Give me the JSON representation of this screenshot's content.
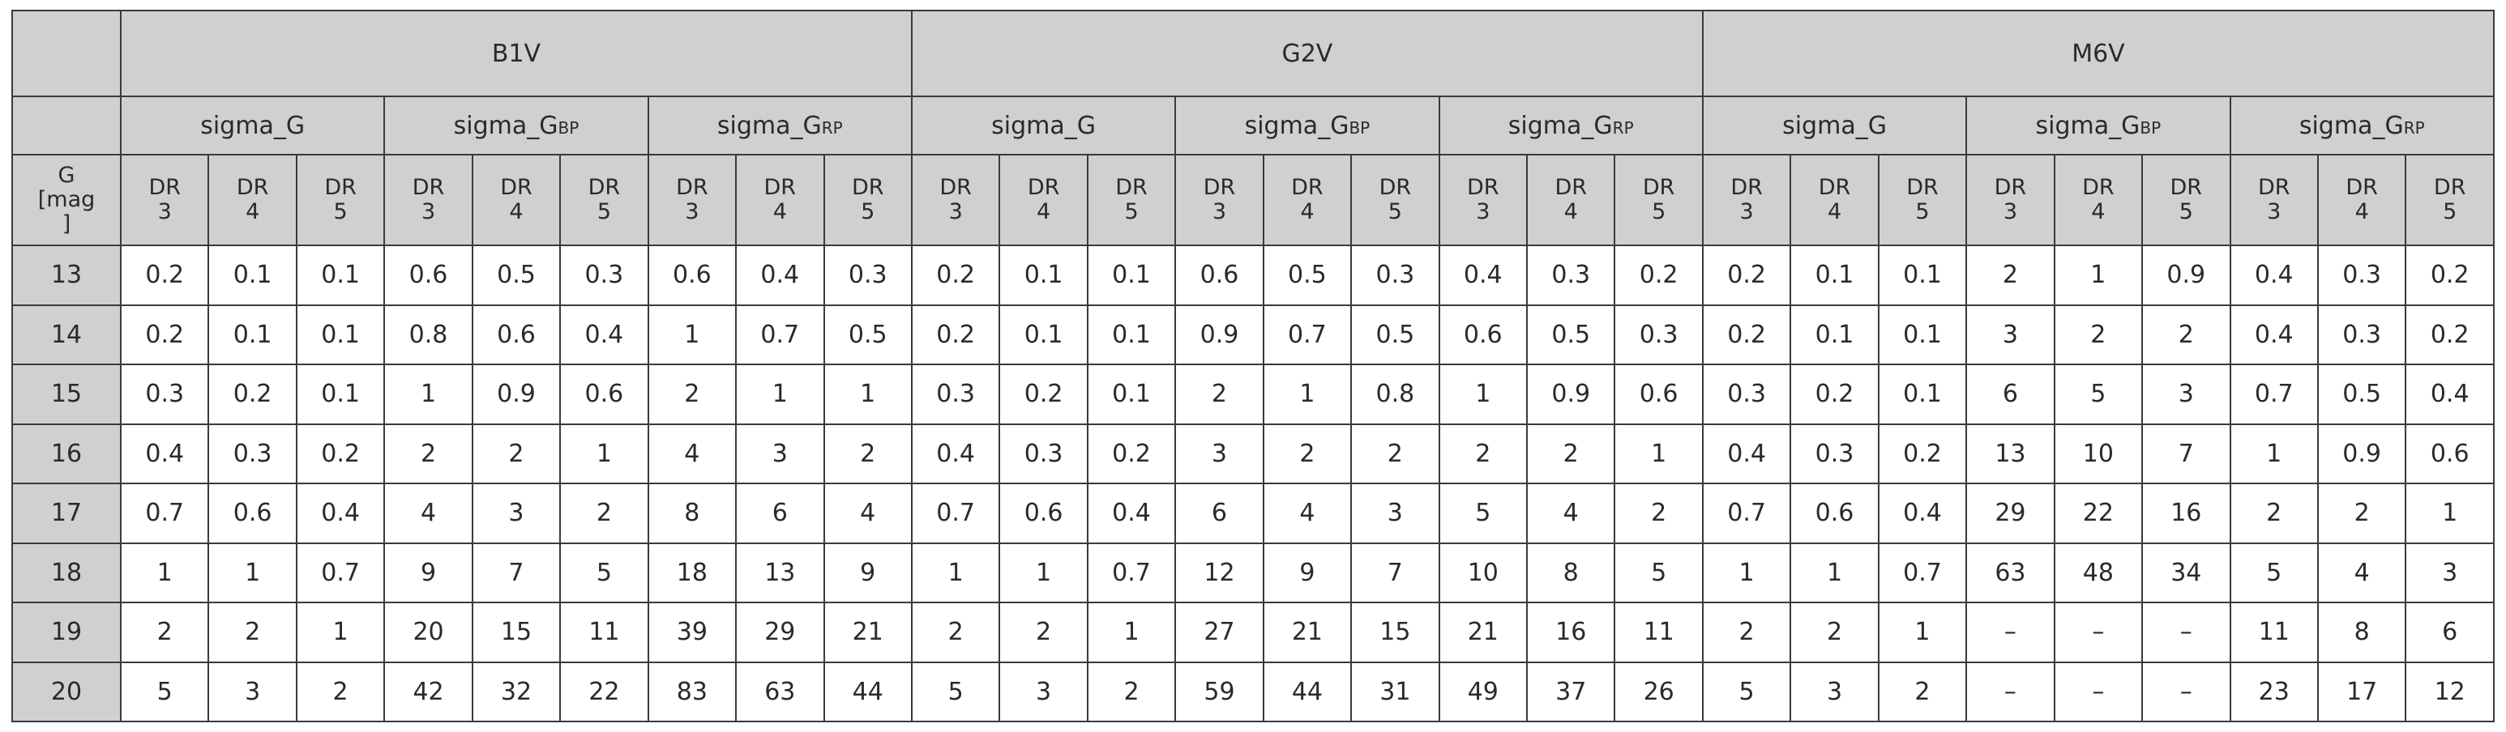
{
  "table": {
    "stars": [
      "B1V",
      "G2V",
      "M6V"
    ],
    "sigma": [
      {
        "base": "sigma_G",
        "sub": ""
      },
      {
        "base": "sigma_G",
        "sub": "BP"
      },
      {
        "base": "sigma_G",
        "sub": "RP"
      }
    ],
    "dr_top": "DR",
    "dr_nums": [
      "3",
      "4",
      "5"
    ],
    "g_header": [
      "G",
      "[mag",
      "]"
    ],
    "rows": [
      {
        "g": "13",
        "values": [
          "0.2",
          "0.1",
          "0.1",
          "0.6",
          "0.5",
          "0.3",
          "0.6",
          "0.4",
          "0.3",
          "0.2",
          "0.1",
          "0.1",
          "0.6",
          "0.5",
          "0.3",
          "0.4",
          "0.3",
          "0.2",
          "0.2",
          "0.1",
          "0.1",
          "2",
          "1",
          "0.9",
          "0.4",
          "0.3",
          "0.2"
        ]
      },
      {
        "g": "14",
        "values": [
          "0.2",
          "0.1",
          "0.1",
          "0.8",
          "0.6",
          "0.4",
          "1",
          "0.7",
          "0.5",
          "0.2",
          "0.1",
          "0.1",
          "0.9",
          "0.7",
          "0.5",
          "0.6",
          "0.5",
          "0.3",
          "0.2",
          "0.1",
          "0.1",
          "3",
          "2",
          "2",
          "0.4",
          "0.3",
          "0.2"
        ]
      },
      {
        "g": "15",
        "values": [
          "0.3",
          "0.2",
          "0.1",
          "1",
          "0.9",
          "0.6",
          "2",
          "1",
          "1",
          "0.3",
          "0.2",
          "0.1",
          "2",
          "1",
          "0.8",
          "1",
          "0.9",
          "0.6",
          "0.3",
          "0.2",
          "0.1",
          "6",
          "5",
          "3",
          "0.7",
          "0.5",
          "0.4"
        ]
      },
      {
        "g": "16",
        "values": [
          "0.4",
          "0.3",
          "0.2",
          "2",
          "2",
          "1",
          "4",
          "3",
          "2",
          "0.4",
          "0.3",
          "0.2",
          "3",
          "2",
          "2",
          "2",
          "2",
          "1",
          "0.4",
          "0.3",
          "0.2",
          "13",
          "10",
          "7",
          "1",
          "0.9",
          "0.6"
        ]
      },
      {
        "g": "17",
        "values": [
          "0.7",
          "0.6",
          "0.4",
          "4",
          "3",
          "2",
          "8",
          "6",
          "4",
          "0.7",
          "0.6",
          "0.4",
          "6",
          "4",
          "3",
          "5",
          "4",
          "2",
          "0.7",
          "0.6",
          "0.4",
          "29",
          "22",
          "16",
          "2",
          "2",
          "1"
        ]
      },
      {
        "g": "18",
        "values": [
          "1",
          "1",
          "0.7",
          "9",
          "7",
          "5",
          "18",
          "13",
          "9",
          "1",
          "1",
          "0.7",
          "12",
          "9",
          "7",
          "10",
          "8",
          "5",
          "1",
          "1",
          "0.7",
          "63",
          "48",
          "34",
          "5",
          "4",
          "3"
        ]
      },
      {
        "g": "19",
        "values": [
          "2",
          "2",
          "1",
          "20",
          "15",
          "11",
          "39",
          "29",
          "21",
          "2",
          "2",
          "1",
          "27",
          "21",
          "15",
          "21",
          "16",
          "11",
          "2",
          "2",
          "1",
          "–",
          "–",
          "–",
          "11",
          "8",
          "6"
        ]
      },
      {
        "g": "20",
        "values": [
          "5",
          "3",
          "2",
          "42",
          "32",
          "22",
          "83",
          "63",
          "44",
          "5",
          "3",
          "2",
          "59",
          "44",
          "31",
          "49",
          "37",
          "26",
          "5",
          "3",
          "2",
          "–",
          "–",
          "–",
          "23",
          "17",
          "12"
        ]
      }
    ]
  }
}
